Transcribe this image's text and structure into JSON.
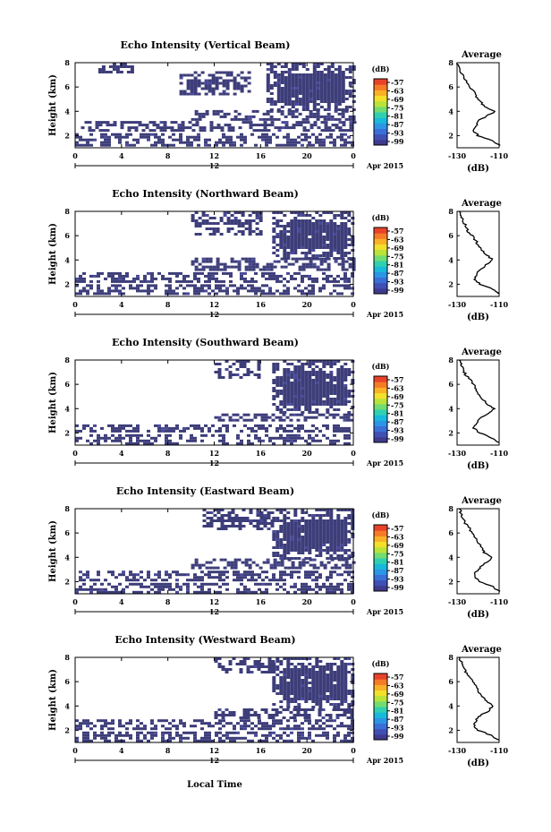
{
  "colors": {
    "echo_dark": "#3d3d7a",
    "echo_noise": "#4a4a99",
    "colorbar": [
      "#3e3a8e",
      "#3f4fb3",
      "#3a6fd8",
      "#2b95e6",
      "#19b9dc",
      "#2fd0b0",
      "#71dc70",
      "#b9e33a",
      "#f2e02a",
      "#f9b126",
      "#f57b26",
      "#e8432a"
    ]
  },
  "common": {
    "xticks": [
      "0",
      "4",
      "8",
      "12",
      "16",
      "20",
      "0"
    ],
    "date_label": "12",
    "month_label": "Apr 2015",
    "yticks": [
      "2",
      "4",
      "6",
      "8"
    ],
    "ylabel": "Height (km)",
    "xlabel": "Local Time",
    "colorbar_unit": "(dB)",
    "colorbar_ticks": [
      "-57",
      "-63",
      "-69",
      "-75",
      "-81",
      "-87",
      "-93",
      "-99"
    ],
    "avg_title": "Average",
    "avg_xticks": [
      "-130",
      "-110"
    ],
    "avg_xlabel": "(dB)"
  },
  "chart_data": [
    {
      "type": "heatmap",
      "title": "Echo Intensity (Vertical Beam)",
      "xlim": [
        0,
        24
      ],
      "ylim": [
        1,
        8
      ],
      "clim": [
        -99,
        -57
      ],
      "signal": [
        {
          "t0": 0,
          "t1": 24,
          "h0": 1.2,
          "h1": 2.2
        },
        {
          "t0": 0.5,
          "t1": 24,
          "h0": 2.5,
          "h1": 3.2
        },
        {
          "t0": 10,
          "t1": 24,
          "h0": 3.3,
          "h1": 4.1
        },
        {
          "t0": 16.5,
          "t1": 24,
          "h0": 4.1,
          "h1": 8
        },
        {
          "t0": 9,
          "t1": 15,
          "h0": 5.5,
          "h1": 7.3
        },
        {
          "t0": 2,
          "t1": 5,
          "h0": 7.2,
          "h1": 8
        }
      ],
      "profile": {
        "h": [
          1.2,
          1.6,
          2.0,
          2.4,
          2.8,
          3.2,
          3.6,
          4.0,
          4.4,
          4.8,
          5.2,
          5.6,
          6.0,
          6.4,
          6.8,
          7.2,
          7.6,
          8.0
        ],
        "db": [
          -110,
          -113,
          -120,
          -122,
          -121,
          -120,
          -116,
          -112,
          -117,
          -119,
          -121,
          -122,
          -124,
          -125,
          -127,
          -128,
          -129,
          -130
        ]
      }
    },
    {
      "type": "heatmap",
      "title": "Echo Intensity (Northward Beam)",
      "xlim": [
        0,
        24
      ],
      "ylim": [
        1,
        8
      ],
      "clim": [
        -99,
        -57
      ],
      "signal": [
        {
          "t0": 0,
          "t1": 24,
          "h0": 1.2,
          "h1": 2.0
        },
        {
          "t0": 0,
          "t1": 24,
          "h0": 2.2,
          "h1": 3.0
        },
        {
          "t0": 10,
          "t1": 24,
          "h0": 3.3,
          "h1": 4.2
        },
        {
          "t0": 17,
          "t1": 24,
          "h0": 4.2,
          "h1": 8
        },
        {
          "t0": 10,
          "t1": 16,
          "h0": 6.2,
          "h1": 8
        }
      ],
      "profile": {
        "h": [
          1.2,
          1.6,
          2.0,
          2.4,
          2.8,
          3.2,
          3.6,
          4.0,
          4.4,
          4.8,
          5.2,
          5.6,
          6.0,
          6.4,
          6.8,
          7.2,
          7.6,
          8.0
        ],
        "db": [
          -110,
          -113,
          -119,
          -122,
          -121,
          -119,
          -116,
          -113,
          -116,
          -118,
          -120,
          -121,
          -123,
          -125,
          -126,
          -127,
          -128,
          -129
        ]
      }
    },
    {
      "type": "heatmap",
      "title": "Echo Intensity (Southward Beam)",
      "xlim": [
        0,
        24
      ],
      "ylim": [
        1,
        8
      ],
      "clim": [
        -99,
        -57
      ],
      "signal": [
        {
          "t0": 0,
          "t1": 24,
          "h0": 1.2,
          "h1": 1.9
        },
        {
          "t0": 0,
          "t1": 24,
          "h0": 2.2,
          "h1": 2.7
        },
        {
          "t0": 12,
          "t1": 24,
          "h0": 3.0,
          "h1": 3.6
        },
        {
          "t0": 17,
          "t1": 24,
          "h0": 3.6,
          "h1": 8
        },
        {
          "t0": 12,
          "t1": 16,
          "h0": 6.5,
          "h1": 8
        }
      ],
      "profile": {
        "h": [
          1.2,
          1.6,
          2.0,
          2.4,
          2.8,
          3.2,
          3.6,
          4.0,
          4.4,
          4.8,
          5.2,
          5.6,
          6.0,
          6.4,
          6.8,
          7.2,
          7.6,
          8.0
        ],
        "db": [
          -110,
          -114,
          -119,
          -122,
          -121,
          -119,
          -115,
          -112,
          -116,
          -118,
          -120,
          -121,
          -122,
          -124,
          -126,
          -127,
          -128,
          -129
        ]
      }
    },
    {
      "type": "heatmap",
      "title": "Echo Intensity (Eastward Beam)",
      "xlim": [
        0,
        24
      ],
      "ylim": [
        1,
        8
      ],
      "clim": [
        -99,
        -57
      ],
      "signal": [
        {
          "t0": 0,
          "t1": 24,
          "h0": 1.2,
          "h1": 1.9
        },
        {
          "t0": 0,
          "t1": 24,
          "h0": 2.2,
          "h1": 2.9
        },
        {
          "t0": 10,
          "t1": 24,
          "h0": 3.1,
          "h1": 3.9
        },
        {
          "t0": 17,
          "t1": 24,
          "h0": 3.9,
          "h1": 8
        },
        {
          "t0": 11,
          "t1": 17,
          "h0": 6.3,
          "h1": 8
        }
      ],
      "profile": {
        "h": [
          1.2,
          1.6,
          2.0,
          2.4,
          2.8,
          3.2,
          3.6,
          4.0,
          4.4,
          4.8,
          5.2,
          5.6,
          6.0,
          6.4,
          6.8,
          7.2,
          7.6,
          8.0
        ],
        "db": [
          -110,
          -113,
          -119,
          -122,
          -121,
          -119,
          -116,
          -113,
          -117,
          -118,
          -120,
          -121,
          -123,
          -124,
          -126,
          -127,
          -128,
          -129
        ]
      }
    },
    {
      "type": "heatmap",
      "title": "Echo Intensity (Westward Beam)",
      "xlim": [
        0,
        24
      ],
      "ylim": [
        1,
        8
      ],
      "clim": [
        -99,
        -57
      ],
      "signal": [
        {
          "t0": 0,
          "t1": 24,
          "h0": 1.2,
          "h1": 1.9
        },
        {
          "t0": 0,
          "t1": 24,
          "h0": 2.2,
          "h1": 2.9
        },
        {
          "t0": 12,
          "t1": 24,
          "h0": 3.1,
          "h1": 3.8
        },
        {
          "t0": 17,
          "t1": 24,
          "h0": 3.8,
          "h1": 8
        },
        {
          "t0": 12,
          "t1": 17,
          "h0": 6.8,
          "h1": 8
        }
      ],
      "profile": {
        "h": [
          1.2,
          1.6,
          2.0,
          2.4,
          2.8,
          3.2,
          3.6,
          4.0,
          4.4,
          4.8,
          5.2,
          5.6,
          6.0,
          6.4,
          6.8,
          7.2,
          7.6,
          8.0
        ],
        "db": [
          -110,
          -114,
          -120,
          -122,
          -121,
          -119,
          -115,
          -113,
          -116,
          -118,
          -120,
          -121,
          -122,
          -124,
          -126,
          -127,
          -128,
          -129
        ]
      }
    }
  ]
}
